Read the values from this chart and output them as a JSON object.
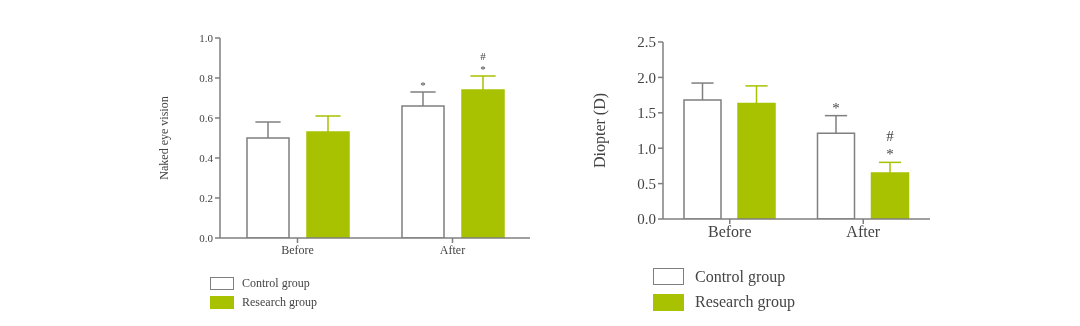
{
  "chart_data": [
    {
      "type": "bar",
      "ylabel": "Naked eye vision",
      "categories": [
        "Before",
        "After"
      ],
      "series": [
        {
          "name": "Control group",
          "color": "#ffffff",
          "values": [
            0.5,
            0.66
          ],
          "errors": [
            [
              0.5,
              0.58
            ],
            [
              0.66,
              0.73
            ]
          ],
          "value_labels": [
            null,
            "*"
          ]
        },
        {
          "name": "Research group",
          "color": "#a8c100",
          "values": [
            0.53,
            0.74
          ],
          "errors": [
            [
              0.53,
              0.61
            ],
            [
              0.74,
              0.81
            ]
          ],
          "value_labels": [
            null,
            "#\n*"
          ]
        }
      ],
      "ylim": [
        0,
        1
      ],
      "yticks": [
        {
          "value": 0,
          "label": "0.0"
        },
        {
          "value": 0.2,
          "label": "0.2"
        },
        {
          "value": 0.4,
          "label": "0.4"
        },
        {
          "value": 0.6,
          "label": "0.6"
        },
        {
          "value": 0.8,
          "label": "0.8"
        },
        {
          "value": 1,
          "label": "1.0"
        }
      ],
      "grid": false,
      "legend": "bottom left"
    },
    {
      "type": "bar",
      "ylabel": "Diopter (D)",
      "categories": [
        "Before",
        "After"
      ],
      "series": [
        {
          "name": "Control group",
          "color": "#ffffff",
          "values": [
            1.68,
            1.21
          ],
          "errors": [
            [
              1.68,
              1.92
            ],
            [
              1.21,
              1.46
            ]
          ],
          "value_labels": [
            null,
            "*"
          ]
        },
        {
          "name": "Research group",
          "color": "#a8c100",
          "values": [
            1.63,
            0.65
          ],
          "errors": [
            [
              1.63,
              1.88
            ],
            [
              0.65,
              0.8
            ]
          ],
          "value_labels": [
            null,
            "#\n*"
          ]
        }
      ],
      "ylim": [
        0,
        2.5
      ],
      "yticks": [
        {
          "value": 0,
          "label": "0.0"
        },
        {
          "value": 0.5,
          "label": "0.5"
        },
        {
          "value": 1,
          "label": "1.0"
        },
        {
          "value": 1.5,
          "label": "1.5"
        },
        {
          "value": 2,
          "label": "2.0"
        },
        {
          "value": 2.5,
          "label": "2.5"
        }
      ],
      "grid": false,
      "legend": "bottom left"
    }
  ]
}
